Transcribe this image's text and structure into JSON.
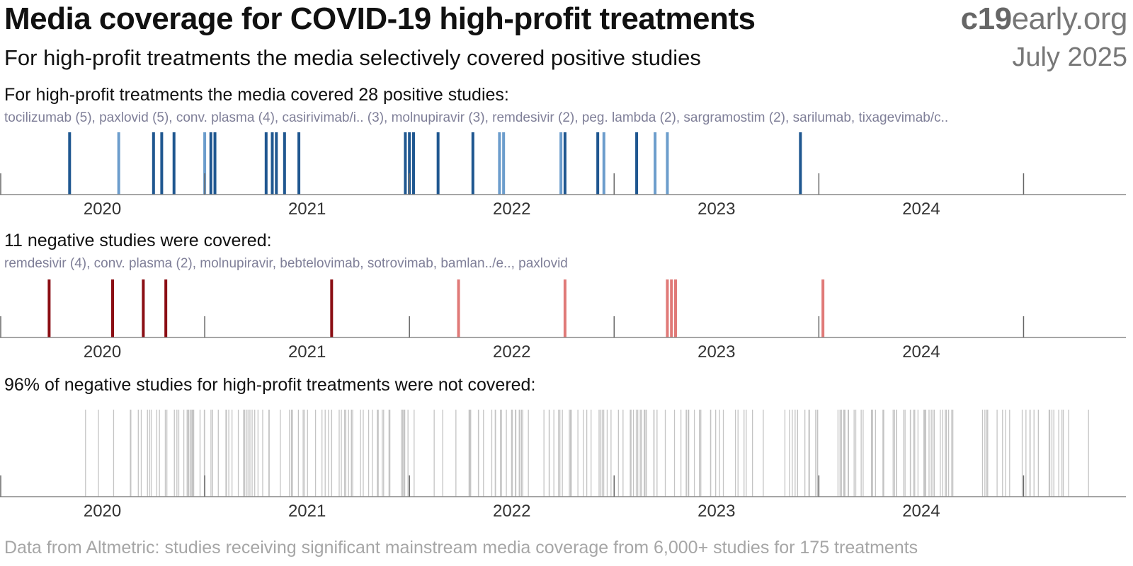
{
  "header": {
    "title": "Media coverage for COVID-19 high-profit treatments",
    "brand_bold": "c19",
    "brand_regular": "early",
    "brand_suffix": ".org",
    "subtitle": "For high-profit treatments the media selectively covered positive studies",
    "date": "July 2025"
  },
  "footer": "Data from Altmetric: studies receiving significant mainstream media coverage from 6,000+ studies for 175 treatments",
  "colors": {
    "positive_dark": "#1f5790",
    "positive_light": "#6c9dcc",
    "negative_dark": "#8b0e14",
    "negative_light": "#e07a78",
    "uncovered": "#c4c4c4",
    "axis": "#888888"
  },
  "chart_data": [
    {
      "type": "strip",
      "heading": "For high-profit treatments the media covered 28 positive studies:",
      "list": "tocilizumab (5), paxlovid (5), conv. plasma (4), casirivimab/i.. (3), molnupiravir (3), remdesivir (2), peg. lambda (2), sargramostim (2), sarilumab, tixagevimab/c..",
      "xlim": [
        2019.5,
        2025.0
      ],
      "ticks": [
        2020,
        2021,
        2022,
        2023,
        2024
      ],
      "events": [
        {
          "x": 2019.84,
          "c": "dark"
        },
        {
          "x": 2020.08,
          "c": "light"
        },
        {
          "x": 2020.25,
          "c": "dark"
        },
        {
          "x": 2020.29,
          "c": "dark"
        },
        {
          "x": 2020.35,
          "c": "dark"
        },
        {
          "x": 2020.5,
          "c": "light"
        },
        {
          "x": 2020.53,
          "c": "dark"
        },
        {
          "x": 2020.55,
          "c": "dark"
        },
        {
          "x": 2020.8,
          "c": "dark"
        },
        {
          "x": 2020.83,
          "c": "dark"
        },
        {
          "x": 2020.85,
          "c": "dark"
        },
        {
          "x": 2020.89,
          "c": "dark"
        },
        {
          "x": 2020.96,
          "c": "dark"
        },
        {
          "x": 2021.48,
          "c": "dark"
        },
        {
          "x": 2021.5,
          "c": "dark"
        },
        {
          "x": 2021.52,
          "c": "dark"
        },
        {
          "x": 2021.64,
          "c": "dark"
        },
        {
          "x": 2021.81,
          "c": "dark"
        },
        {
          "x": 2021.94,
          "c": "light"
        },
        {
          "x": 2021.96,
          "c": "light"
        },
        {
          "x": 2022.24,
          "c": "light"
        },
        {
          "x": 2022.26,
          "c": "dark"
        },
        {
          "x": 2022.42,
          "c": "dark"
        },
        {
          "x": 2022.45,
          "c": "light"
        },
        {
          "x": 2022.61,
          "c": "dark"
        },
        {
          "x": 2022.7,
          "c": "light"
        },
        {
          "x": 2022.76,
          "c": "light"
        },
        {
          "x": 2023.41,
          "c": "dark"
        }
      ]
    },
    {
      "type": "strip",
      "heading": "11 negative studies were covered:",
      "list": "remdesivir (4), conv. plasma (2), molnupiravir, bebtelovimab, sotrovimab, bamlan../e.., paxlovid",
      "xlim": [
        2019.5,
        2025.0
      ],
      "ticks": [
        2020,
        2021,
        2022,
        2023,
        2024
      ],
      "events": [
        {
          "x": 2019.74,
          "c": "dark"
        },
        {
          "x": 2020.05,
          "c": "dark"
        },
        {
          "x": 2020.2,
          "c": "dark"
        },
        {
          "x": 2020.31,
          "c": "dark"
        },
        {
          "x": 2021.12,
          "c": "dark"
        },
        {
          "x": 2021.74,
          "c": "light"
        },
        {
          "x": 2022.26,
          "c": "light"
        },
        {
          "x": 2022.76,
          "c": "light"
        },
        {
          "x": 2022.78,
          "c": "light"
        },
        {
          "x": 2022.8,
          "c": "light"
        },
        {
          "x": 2023.52,
          "c": "light"
        }
      ]
    },
    {
      "type": "strip",
      "heading": "96% of negative studies for high-profit treatments were not covered:",
      "xlim": [
        2019.5,
        2025.0
      ],
      "ticks": [
        2020,
        2021,
        2022,
        2023,
        2024
      ],
      "range": [
        2019.85,
        2024.89
      ],
      "count": 260
    }
  ]
}
